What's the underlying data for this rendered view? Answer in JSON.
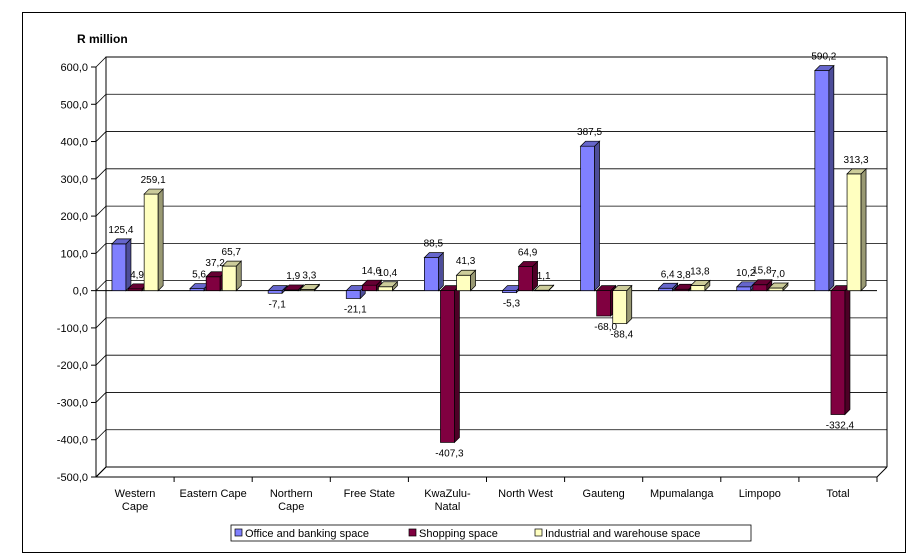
{
  "chart_data": {
    "type": "bar",
    "title": "",
    "ylabel": "R million",
    "xlabel": "",
    "ylim": [
      -500,
      600
    ],
    "yticks": [
      "600,0",
      "500,0",
      "400,0",
      "300,0",
      "200,0",
      "100,0",
      "0,0",
      "-100,0",
      "-200,0",
      "-300,0",
      "-400,0",
      "-500,0"
    ],
    "categories": [
      "Western Cape",
      "Eastern Cape",
      "Northern Cape",
      "Free State",
      "KwaZulu-Natal",
      "North West",
      "Gauteng",
      "Mpumalanga",
      "Limpopo",
      "Total"
    ],
    "series": [
      {
        "name": "Office and banking space",
        "color": "#8080ff",
        "values": [
          125.4,
          5.6,
          -7.1,
          -21.1,
          88.5,
          -5.3,
          387.5,
          6.4,
          10.2,
          590.2
        ],
        "labels": [
          "125,4",
          "5,6",
          "-7,1",
          "-21,1",
          "88,5",
          "-5,3",
          "387,5",
          "6,4",
          "10,2",
          "590,2"
        ]
      },
      {
        "name": "Shopping space",
        "color": "#800040",
        "values": [
          4.9,
          37.2,
          1.9,
          14.6,
          -407.3,
          64.9,
          -68.0,
          3.8,
          15.8,
          -332.4
        ],
        "labels": [
          "4,9",
          "37,2",
          "1,9",
          "14,6",
          "-407,3",
          "64,9",
          "-68,0",
          "3,8",
          "15,8",
          "-332,4"
        ]
      },
      {
        "name": "Industrial and warehouse space",
        "color": "#ffffc0",
        "values": [
          259.1,
          65.7,
          3.3,
          10.4,
          41.3,
          1.1,
          -88.4,
          13.8,
          7.0,
          313.3
        ],
        "labels": [
          "259,1",
          "65,7",
          "3,3",
          "10,4",
          "41,3",
          "1,1",
          "-88,4",
          "13,8",
          "7,0",
          "313,3"
        ]
      }
    ],
    "grid": true,
    "legend_position": "bottom"
  }
}
